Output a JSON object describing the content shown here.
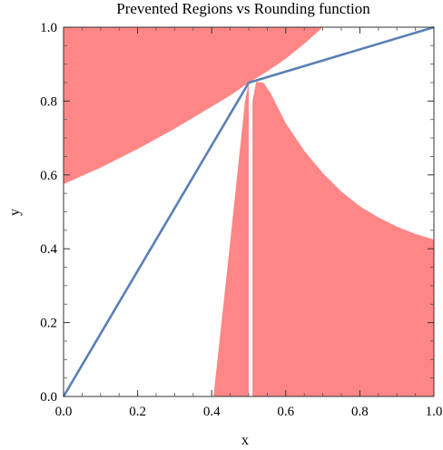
{
  "chart_data": {
    "type": "area",
    "title": "Prevented Regions vs Rounding function",
    "xlabel": "x",
    "ylabel": "y",
    "xlim": [
      0,
      1
    ],
    "ylim": [
      0,
      1
    ],
    "x_ticks": [
      0.0,
      0.2,
      0.4,
      0.6,
      0.8,
      1.0
    ],
    "y_ticks": [
      0.0,
      0.2,
      0.4,
      0.6,
      0.8,
      1.0
    ],
    "x_tick_labels": [
      "0.0",
      "0.2",
      "0.4",
      "0.6",
      "0.8",
      "1.0"
    ],
    "y_tick_labels": [
      "0.0",
      "0.2",
      "0.4",
      "0.6",
      "0.8",
      "1.0"
    ],
    "grid": false,
    "regions": [
      {
        "color": "#ff7f7f",
        "points": [
          [
            0,
            0.575
          ],
          [
            0.1,
            0.62
          ],
          [
            0.2,
            0.67
          ],
          [
            0.3,
            0.725
          ],
          [
            0.4,
            0.785
          ],
          [
            0.45,
            0.815
          ],
          [
            0.5,
            0.85
          ],
          [
            0.55,
            0.88
          ],
          [
            0.6,
            0.915
          ],
          [
            0.65,
            0.955
          ],
          [
            0.7,
            1.0
          ],
          [
            0,
            1.0
          ]
        ]
      },
      {
        "color": "#ff7f7f",
        "points": [
          [
            0.405,
            0
          ],
          [
            0.45,
            0.42
          ],
          [
            0.49,
            0.8
          ],
          [
            0.5,
            0.85
          ],
          [
            0.5,
            0
          ]
        ]
      },
      {
        "color": "#ff7f7f",
        "points": [
          [
            0.51,
            0
          ],
          [
            0.51,
            0.8
          ],
          [
            0.52,
            0.852
          ],
          [
            0.54,
            0.85
          ],
          [
            0.56,
            0.82
          ],
          [
            0.58,
            0.78
          ],
          [
            0.6,
            0.74
          ],
          [
            0.65,
            0.665
          ],
          [
            0.7,
            0.605
          ],
          [
            0.75,
            0.555
          ],
          [
            0.8,
            0.515
          ],
          [
            0.85,
            0.485
          ],
          [
            0.9,
            0.46
          ],
          [
            0.95,
            0.44
          ],
          [
            1.0,
            0.425
          ],
          [
            1.0,
            0
          ]
        ]
      }
    ],
    "series": [
      {
        "color": "#5a7fb5",
        "x": [
          0,
          0.5,
          1
        ],
        "y": [
          0,
          0.85,
          1
        ]
      }
    ]
  }
}
